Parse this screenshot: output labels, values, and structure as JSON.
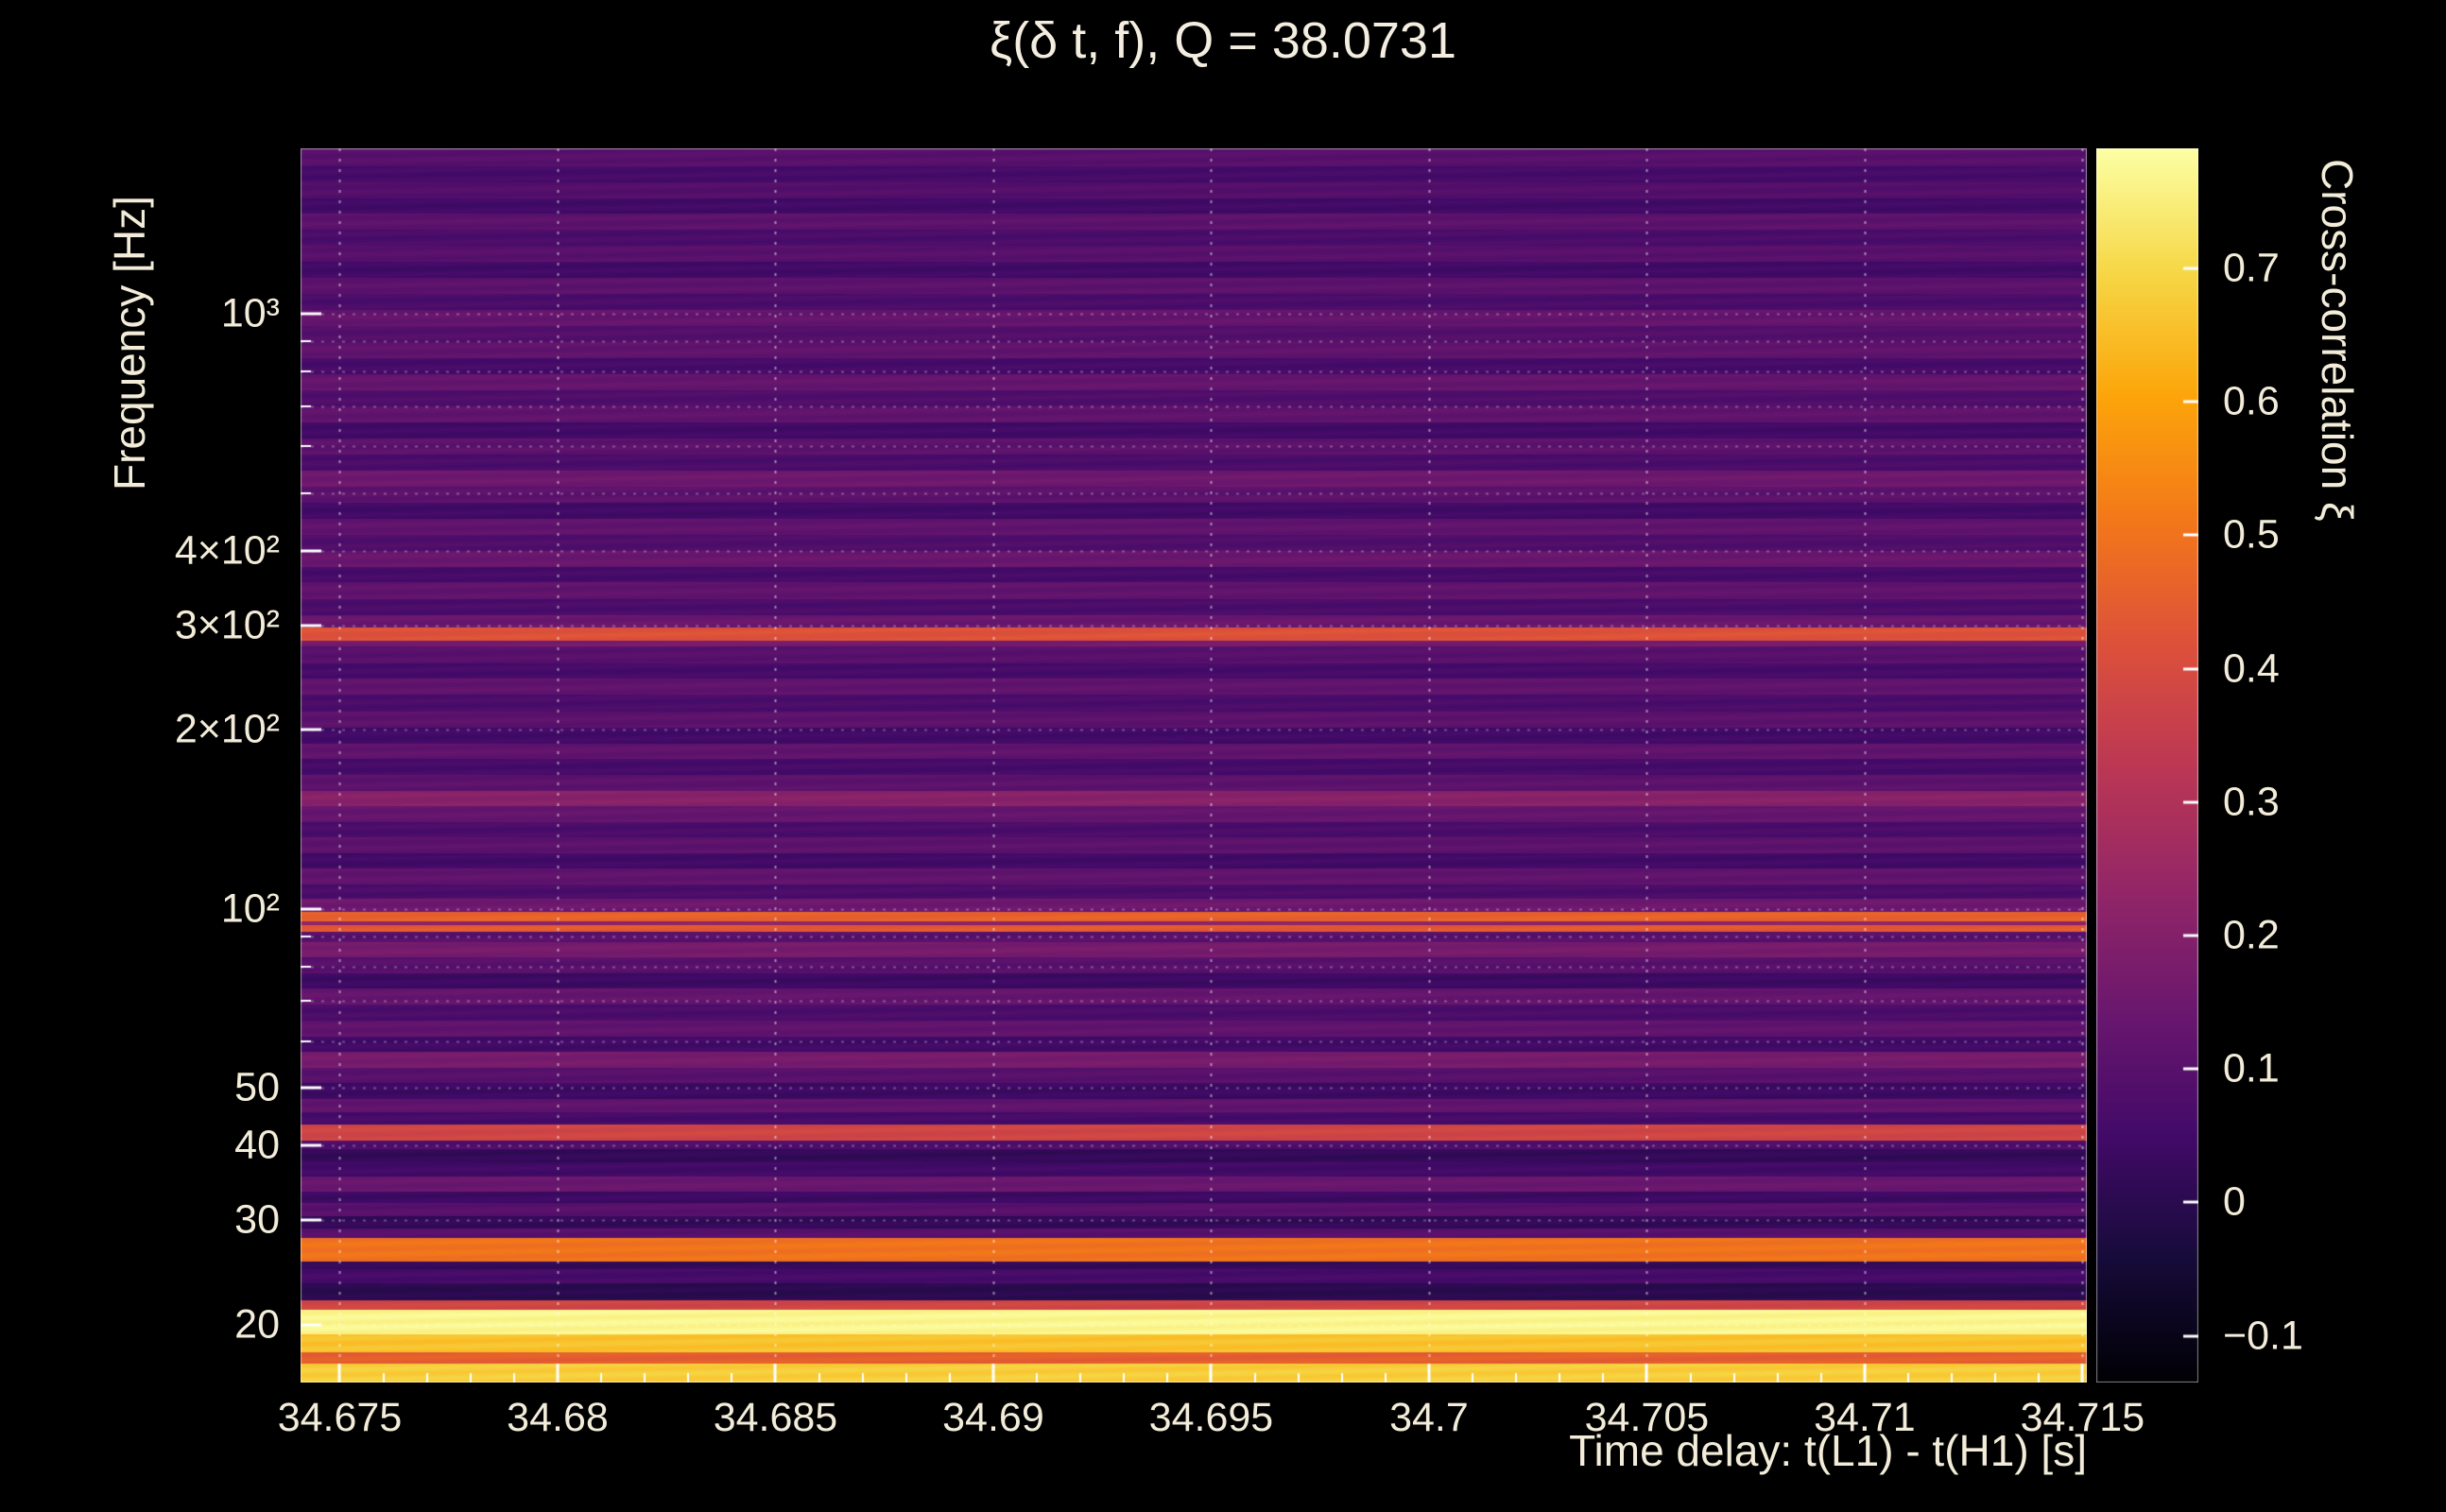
{
  "colors": {
    "background": "#000000",
    "text": "#f2ecd9",
    "tick_color": "#ffffff"
  },
  "chart_data": {
    "type": "heatmap",
    "title": "ξ(δ t, f), Q = 38.0731",
    "xlabel": "Time delay: t(L1) - t(H1) [s]",
    "ylabel": "Frequency [Hz]",
    "colorbar_label": "Cross-correlation ξ",
    "colormap": "inferno",
    "x_range": [
      34.6741,
      34.7151
    ],
    "x_ticks": [
      34.675,
      34.68,
      34.685,
      34.69,
      34.695,
      34.7,
      34.705,
      34.71,
      34.715
    ],
    "x_tick_labels": [
      "34.675",
      "34.68",
      "34.685",
      "34.69",
      "34.695",
      "34.7",
      "34.705",
      "34.71",
      "34.715"
    ],
    "x_minor_step": 0.001,
    "y_scale": "log",
    "y_range": [
      16,
      1900
    ],
    "y_ticks": [
      20,
      30,
      40,
      50,
      100,
      200,
      300,
      400,
      1000
    ],
    "y_tick_labels": [
      "20",
      "30",
      "40",
      "50",
      "10²",
      "2×10²",
      "3×10²",
      "4×10²",
      "10³"
    ],
    "colorbar_range": [
      -0.135,
      0.79
    ],
    "colorbar_ticks": [
      -0.1,
      0,
      0.1,
      0.2,
      0.3,
      0.4,
      0.5,
      0.6,
      0.7
    ],
    "colorbar_tick_labels": [
      "−0.1",
      "0",
      "0.1",
      "0.2",
      "0.3",
      "0.4",
      "0.5",
      "0.6",
      "0.7"
    ],
    "bands_format": "[f_low_hz, f_high_hz, cross_correlation_xi]",
    "bands": [
      [
        16.0,
        17.2,
        0.68
      ],
      [
        17.2,
        18.0,
        0.45
      ],
      [
        18.0,
        19.3,
        0.66
      ],
      [
        19.3,
        21.2,
        0.77
      ],
      [
        21.2,
        22.0,
        0.38
      ],
      [
        22.0,
        23.5,
        0.0
      ],
      [
        23.5,
        24.8,
        0.06
      ],
      [
        24.8,
        25.6,
        0.02
      ],
      [
        25.6,
        28.0,
        0.5
      ],
      [
        28.0,
        29.0,
        0.1
      ],
      [
        29.0,
        30.5,
        0.02
      ],
      [
        30.5,
        32.0,
        0.1
      ],
      [
        32.0,
        33.5,
        0.04
      ],
      [
        33.5,
        35.5,
        0.14
      ],
      [
        35.5,
        37.5,
        0.05
      ],
      [
        37.5,
        39.5,
        0.02
      ],
      [
        39.5,
        40.8,
        0.08
      ],
      [
        40.8,
        43.5,
        0.38
      ],
      [
        43.5,
        45.5,
        0.06
      ],
      [
        45.5,
        48.0,
        0.12
      ],
      [
        48.0,
        51.0,
        0.04
      ],
      [
        51.0,
        54.0,
        0.1
      ],
      [
        54.0,
        57.5,
        0.17
      ],
      [
        57.5,
        61.0,
        0.05
      ],
      [
        61.0,
        65.0,
        0.12
      ],
      [
        65.0,
        69.0,
        0.07
      ],
      [
        69.0,
        73.5,
        0.13
      ],
      [
        73.5,
        78.0,
        0.04
      ],
      [
        78.0,
        83.0,
        0.1
      ],
      [
        83.0,
        88.0,
        0.17
      ],
      [
        88.0,
        91.5,
        0.1
      ],
      [
        91.5,
        94.0,
        0.44
      ],
      [
        94.0,
        95.5,
        0.22
      ],
      [
        95.5,
        99.0,
        0.46
      ],
      [
        99.0,
        104,
        0.15
      ],
      [
        104,
        110,
        0.07
      ],
      [
        110,
        117,
        0.12
      ],
      [
        117,
        124,
        0.05
      ],
      [
        124,
        132,
        0.11
      ],
      [
        132,
        140,
        0.07
      ],
      [
        140,
        149,
        0.13
      ],
      [
        149,
        158,
        0.21
      ],
      [
        158,
        168,
        0.11
      ],
      [
        168,
        179,
        0.06
      ],
      [
        179,
        190,
        0.12
      ],
      [
        190,
        202,
        0.05
      ],
      [
        202,
        215,
        0.11
      ],
      [
        215,
        229,
        0.07
      ],
      [
        229,
        244,
        0.12
      ],
      [
        244,
        259,
        0.06
      ],
      [
        259,
        276,
        0.1
      ],
      [
        276,
        283,
        0.17
      ],
      [
        283,
        297,
        0.42
      ],
      [
        297,
        312,
        0.14
      ],
      [
        312,
        332,
        0.07
      ],
      [
        332,
        354,
        0.12
      ],
      [
        354,
        376,
        0.06
      ],
      [
        376,
        400,
        0.14
      ],
      [
        400,
        426,
        0.08
      ],
      [
        426,
        453,
        0.12
      ],
      [
        453,
        482,
        0.05
      ],
      [
        482,
        513,
        0.11
      ],
      [
        513,
        546,
        0.15
      ],
      [
        546,
        581,
        0.07
      ],
      [
        581,
        618,
        0.11
      ],
      [
        618,
        658,
        0.05
      ],
      [
        658,
        700,
        0.12
      ],
      [
        700,
        745,
        0.08
      ],
      [
        745,
        793,
        0.13
      ],
      [
        793,
        844,
        0.06
      ],
      [
        844,
        898,
        0.12
      ],
      [
        898,
        955,
        0.09
      ],
      [
        955,
        1016,
        0.13
      ],
      [
        1016,
        1081,
        0.07
      ],
      [
        1081,
        1150,
        0.11
      ],
      [
        1150,
        1224,
        0.05
      ],
      [
        1224,
        1302,
        0.1
      ],
      [
        1302,
        1385,
        0.07
      ],
      [
        1385,
        1474,
        0.11
      ],
      [
        1474,
        1568,
        0.05
      ],
      [
        1568,
        1668,
        0.09
      ],
      [
        1668,
        1775,
        0.06
      ],
      [
        1775,
        1900,
        0.1
      ]
    ]
  }
}
